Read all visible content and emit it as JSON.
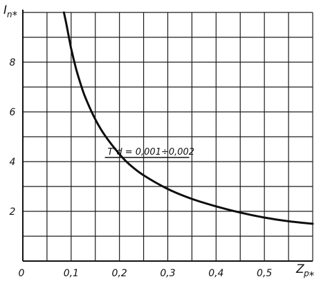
{
  "chart_data": {
    "type": "line",
    "title": "",
    "xlabel": {
      "base": "Z",
      "sup": "″",
      "sub": "p",
      "star": "*"
    },
    "ylabel": {
      "base": "I",
      "sub": "n",
      "star": "*"
    },
    "xlim": [
      0,
      0.6
    ],
    "ylim": [
      0,
      10
    ],
    "grid": true,
    "x_ticks": [
      {
        "value": 0,
        "label": "0"
      },
      {
        "value": 0.1,
        "label": "0,1"
      },
      {
        "value": 0.2,
        "label": "0,2"
      },
      {
        "value": 0.3,
        "label": "0,3"
      },
      {
        "value": 0.4,
        "label": "0,4"
      },
      {
        "value": 0.5,
        "label": "0,5"
      }
    ],
    "y_ticks": [
      {
        "value": 2,
        "label": "2"
      },
      {
        "value": 4,
        "label": "4"
      },
      {
        "value": 6,
        "label": "6"
      },
      {
        "value": 8,
        "label": "8"
      }
    ],
    "annotation": {
      "text": "T″d = 0,001÷0,002",
      "x": 0.27,
      "y": 4.5
    },
    "series": [
      {
        "x": [
          0.085,
          0.09,
          0.1,
          0.11,
          0.12,
          0.13,
          0.15,
          0.17,
          0.2,
          0.22,
          0.25,
          0.3,
          0.35,
          0.4,
          0.45,
          0.5,
          0.55,
          0.6
        ],
        "y": [
          10.0,
          9.55,
          8.55,
          7.75,
          7.1,
          6.55,
          5.7,
          5.05,
          4.3,
          3.9,
          3.45,
          2.9,
          2.5,
          2.2,
          1.95,
          1.75,
          1.6,
          1.5
        ]
      }
    ]
  }
}
